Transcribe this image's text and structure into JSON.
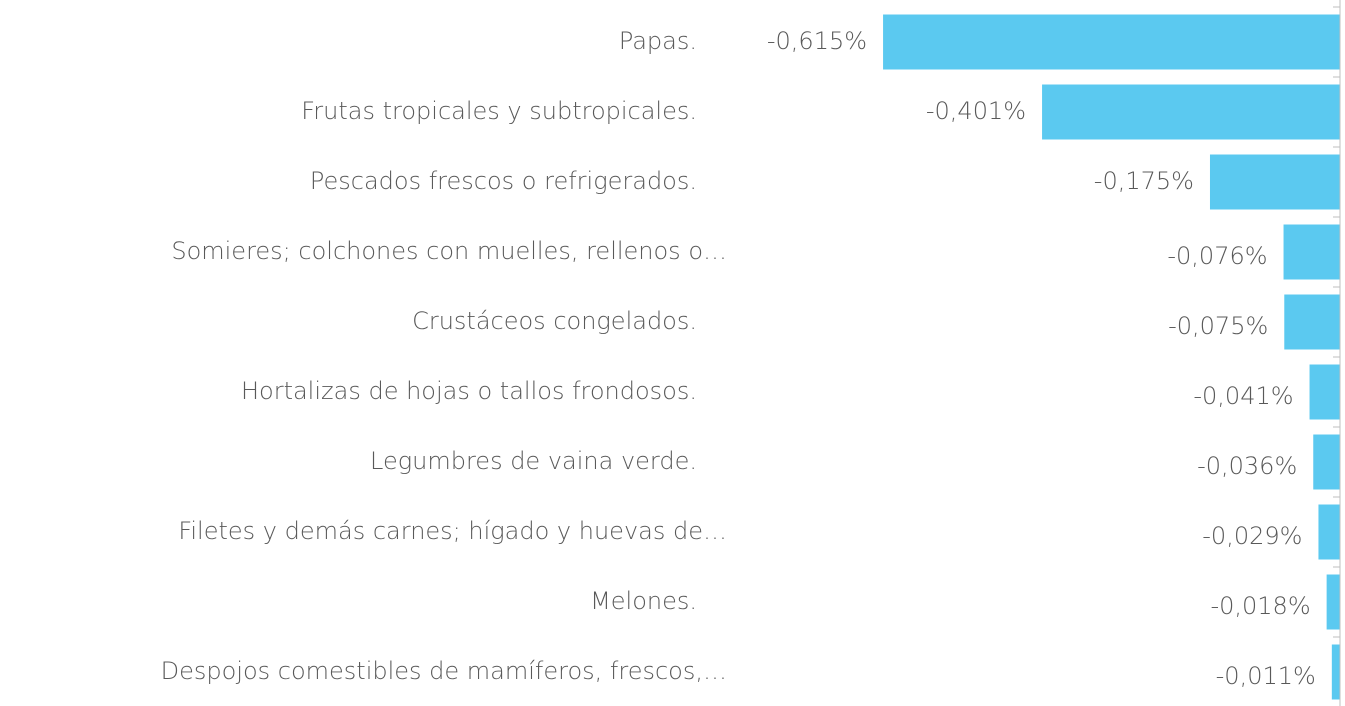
{
  "chart_data": {
    "type": "bar",
    "orientation": "horizontal",
    "categories": [
      "Papas.",
      "Frutas tropicales y subtropicales.",
      "Pescados frescos o refrigerados.",
      "Somieres; colchones con muelles, rellenos o…",
      "Crustáceos congelados.",
      "Hortalizas de hojas o tallos frondosos.",
      "Legumbres de vaina verde.",
      "Filetes y demás carnes; hígado y huevas de…",
      "Melones.",
      "Despojos comestibles de mamíferos, frescos,…"
    ],
    "values": [
      -0.615,
      -0.401,
      -0.175,
      -0.076,
      -0.075,
      -0.041,
      -0.036,
      -0.029,
      -0.018,
      -0.011
    ],
    "value_labels": [
      "-0,615%",
      "-0,401%",
      "-0,175%",
      "-0,076%",
      "-0,075%",
      "-0,041%",
      "-0,036%",
      "-0,029%",
      "-0,018%",
      "-0,011%"
    ],
    "color": "#5bc9f0",
    "xlim": [
      -0.7,
      0
    ]
  }
}
